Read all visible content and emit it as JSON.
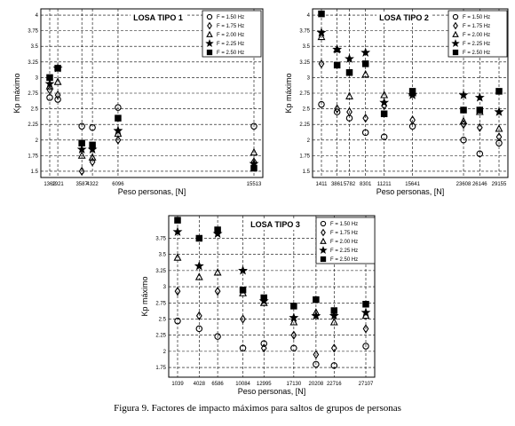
{
  "caption": "Figura 9. Factores de impacto máximos para saltos de grupos de personas",
  "chart_data": [
    {
      "type": "scatter",
      "title": "LOSA TIPO 1",
      "xlabel": "Peso personas, [N]",
      "ylabel": "Kp máximo",
      "ylim": [
        1.4,
        4.1
      ],
      "yticks": [
        1.5,
        1.75,
        2,
        2.25,
        2.5,
        2.75,
        3,
        3.25,
        3.5,
        3.75,
        4
      ],
      "x": [
        1362,
        1921,
        3587,
        4322,
        6096,
        15513
      ],
      "x_tick_labels": [
        "1362",
        "1921",
        "3587",
        "4322",
        "6096",
        "15513"
      ],
      "grid": true,
      "legend_position": "top-right",
      "series": [
        {
          "name": "F = 1.50 Hz",
          "marker": "circle",
          "values": [
            2.68,
            2.65,
            2.22,
            2.2,
            2.52,
            2.22
          ]
        },
        {
          "name": "F = 1.75 Hz",
          "marker": "diamond",
          "values": [
            2.8,
            2.72,
            1.5,
            1.65,
            2.0,
            1.65
          ]
        },
        {
          "name": "F = 2.00 Hz",
          "marker": "triangle",
          "values": [
            2.86,
            2.93,
            1.75,
            1.72,
            2.1,
            1.8
          ]
        },
        {
          "name": "F = 2.25 Hz",
          "marker": "star",
          "values": [
            2.9,
            3.15,
            1.85,
            1.85,
            2.15,
            1.62
          ]
        },
        {
          "name": "F = 2.50 Hz",
          "marker": "square",
          "values": [
            3.0,
            3.15,
            1.95,
            1.92,
            2.35,
            1.55
          ]
        }
      ]
    },
    {
      "type": "scatter",
      "title": "LOSA TIPO 2",
      "xlabel": "Peso personas, [N]",
      "ylabel": "Kp máximo",
      "ylim": [
        1.4,
        4.1
      ],
      "yticks": [
        1.5,
        1.75,
        2,
        2.25,
        2.5,
        2.75,
        3,
        3.25,
        3.5,
        3.75,
        4
      ],
      "x": [
        1411,
        3861,
        5782,
        8301,
        11211,
        15641,
        23608,
        26146,
        29155
      ],
      "x_tick_labels": [
        "1411",
        "3861",
        "5782",
        "8301",
        "11211",
        "15641",
        "23608",
        "26146",
        "29155"
      ],
      "grid": true,
      "legend_position": "top-right",
      "series": [
        {
          "name": "F = 1.50 Hz",
          "marker": "circle",
          "values": [
            2.57,
            2.45,
            2.35,
            2.12,
            2.05,
            2.22,
            2.0,
            1.78,
            1.95
          ]
        },
        {
          "name": "F = 1.75 Hz",
          "marker": "diamond",
          "values": [
            3.22,
            2.5,
            2.45,
            2.35,
            2.55,
            2.32,
            2.25,
            2.2,
            2.05
          ]
        },
        {
          "name": "F = 2.00 Hz",
          "marker": "triangle",
          "values": [
            3.65,
            3.45,
            2.7,
            3.05,
            2.72,
            2.75,
            2.3,
            2.45,
            2.18
          ]
        },
        {
          "name": "F = 2.25 Hz",
          "marker": "star",
          "values": [
            3.72,
            3.45,
            3.3,
            3.4,
            2.6,
            2.72,
            2.72,
            2.68,
            2.45
          ]
        },
        {
          "name": "F = 2.50 Hz",
          "marker": "square",
          "values": [
            4.02,
            3.2,
            3.08,
            3.22,
            2.42,
            2.78,
            2.48,
            2.48,
            2.78
          ]
        }
      ]
    },
    {
      "type": "scatter",
      "title": "LOSA TIPO 3",
      "xlabel": "Peso personas, [N]",
      "ylabel": "Kp máximo",
      "ylim": [
        1.6,
        4.1
      ],
      "yticks": [
        1.75,
        2,
        2.25,
        2.5,
        2.75,
        3,
        3.25,
        3.5,
        3.75
      ],
      "x": [
        1039,
        4028,
        6586,
        10084,
        12995,
        17130,
        20208,
        22716,
        27107
      ],
      "x_tick_labels": [
        "1039",
        "4028",
        "6586",
        "10084",
        "12995",
        "17130",
        "20208",
        "22716",
        "27107"
      ],
      "grid": true,
      "legend_position": "top-right",
      "series": [
        {
          "name": "F = 1.50 Hz",
          "marker": "circle",
          "values": [
            2.47,
            2.35,
            2.23,
            2.05,
            2.12,
            2.05,
            1.8,
            1.78,
            2.08
          ]
        },
        {
          "name": "F = 1.75 Hz",
          "marker": "diamond",
          "values": [
            2.93,
            2.55,
            2.93,
            2.5,
            2.05,
            2.25,
            1.95,
            2.05,
            2.35
          ]
        },
        {
          "name": "F = 2.00 Hz",
          "marker": "triangle",
          "values": [
            3.45,
            3.15,
            3.22,
            2.9,
            2.75,
            2.45,
            2.6,
            2.45,
            2.55
          ]
        },
        {
          "name": "F = 2.25 Hz",
          "marker": "star",
          "values": [
            3.85,
            3.32,
            3.82,
            3.25,
            2.78,
            2.52,
            2.55,
            2.55,
            2.6
          ]
        },
        {
          "name": "F = 2.50 Hz",
          "marker": "square",
          "values": [
            4.03,
            3.75,
            3.88,
            2.95,
            2.83,
            2.7,
            2.8,
            2.63,
            2.73
          ]
        }
      ]
    }
  ]
}
